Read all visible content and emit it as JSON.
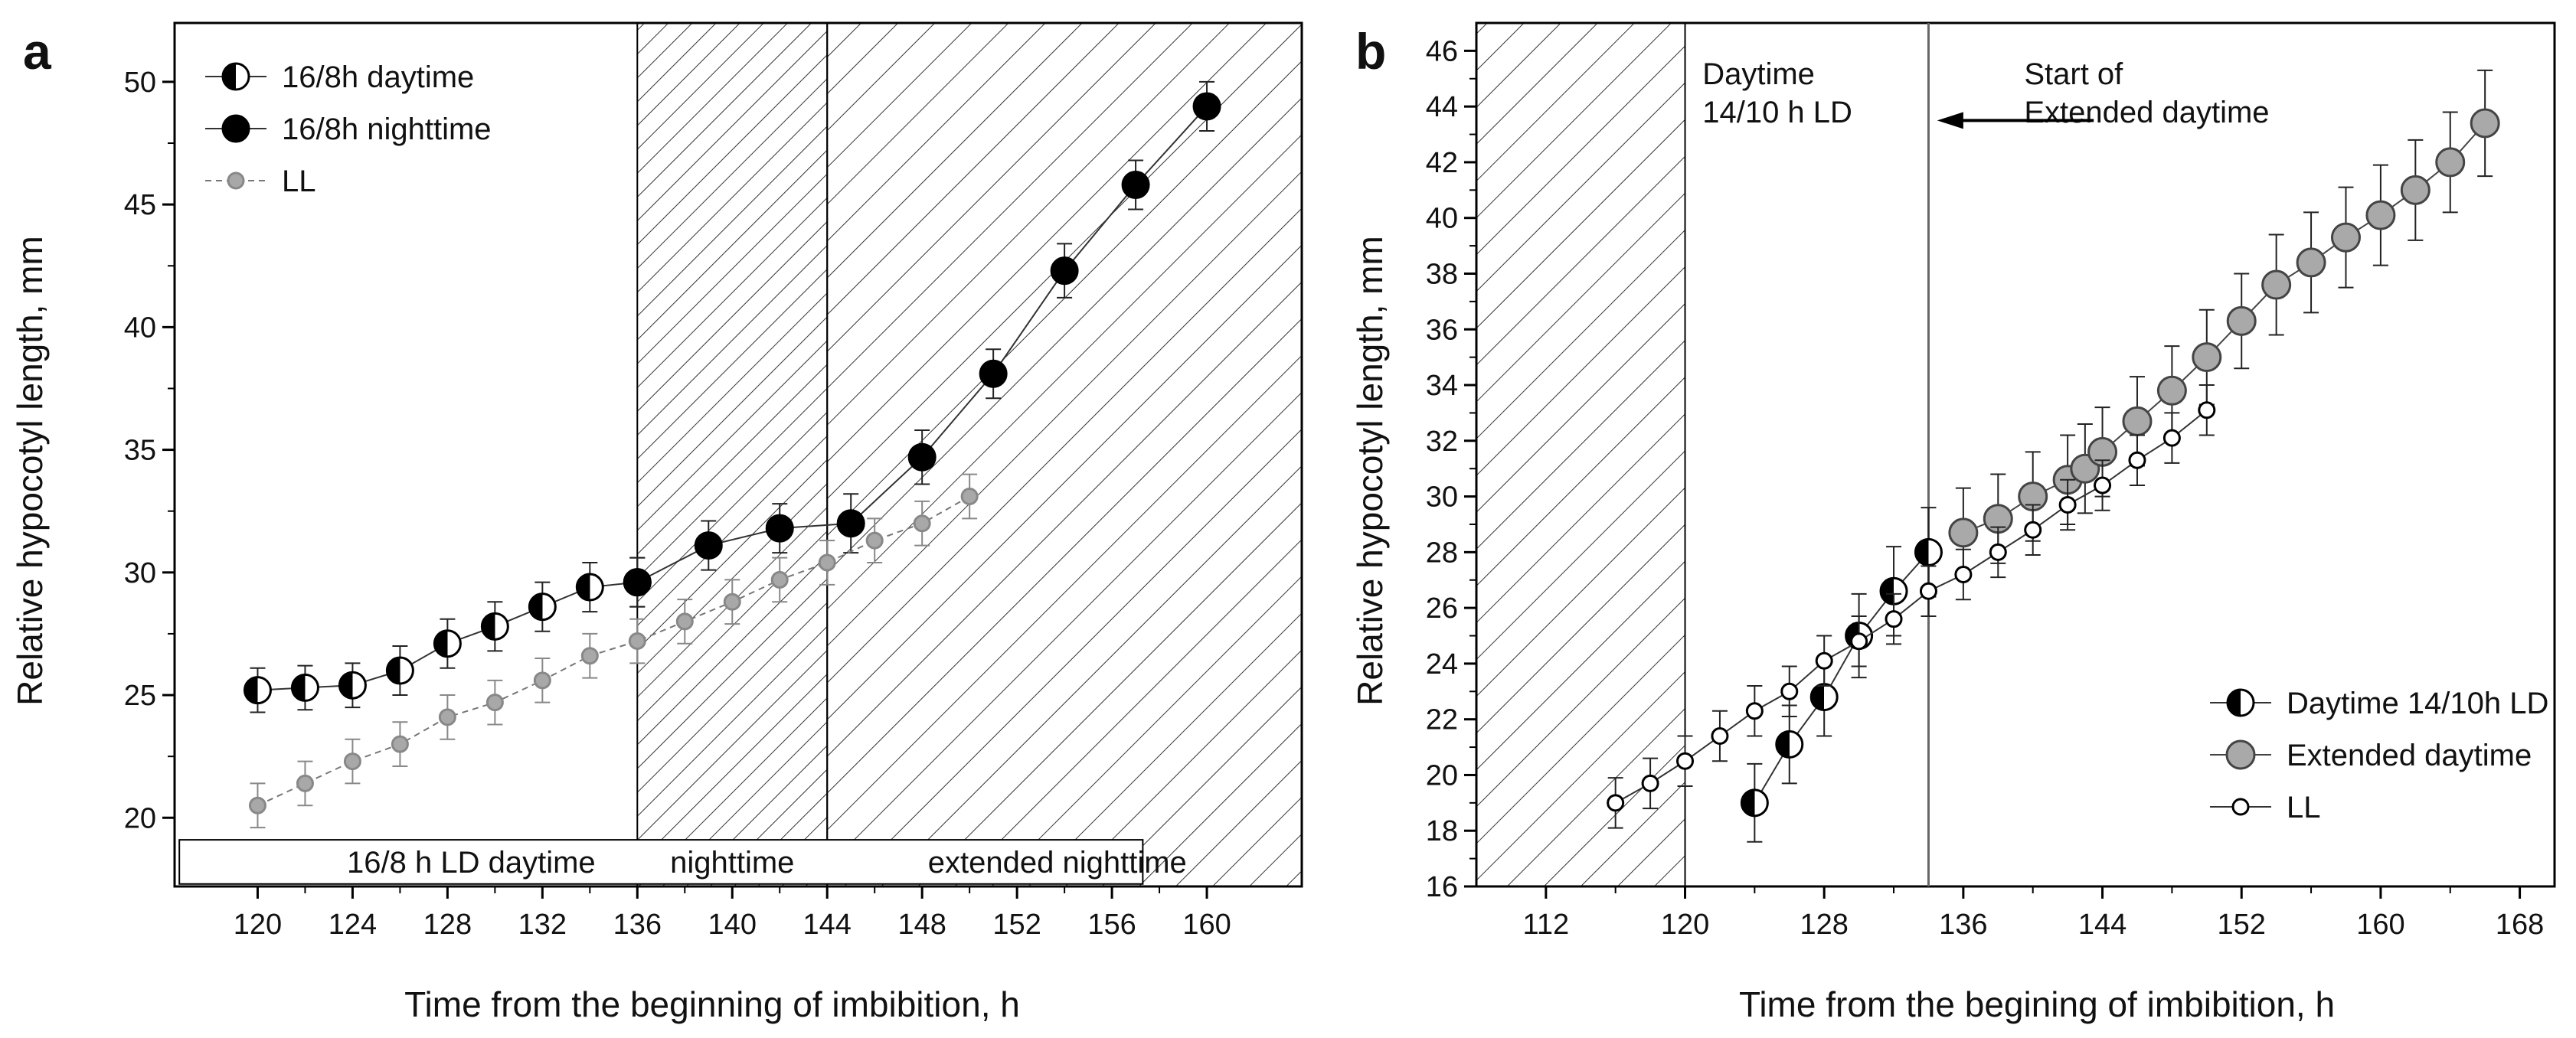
{
  "chart_data": [
    {
      "type": "scatter",
      "panel_label": "a",
      "xlabel": "Time from the beginning of imbibition, h",
      "ylabel": "Relative hypocotyl length, mm",
      "xlim": [
        116.5,
        164
      ],
      "ylim": [
        17.2,
        52.4
      ],
      "xticks": [
        120,
        124,
        128,
        132,
        136,
        140,
        144,
        148,
        152,
        156,
        160
      ],
      "yticks": [
        20,
        25,
        30,
        35,
        40,
        45,
        50
      ],
      "shaded_regions": [
        {
          "from": 136,
          "to": 144,
          "hatch": "fine"
        },
        {
          "from": 144,
          "to": 164,
          "hatch": "wide"
        }
      ],
      "annotation_box": {
        "labels": [
          {
            "text": "16/8 h LD daytime",
            "x": 129
          },
          {
            "text": "nighttime",
            "x": 140
          },
          {
            "text": "extended nighttime",
            "x": 153.7
          }
        ]
      },
      "legend": {
        "position": "top-left",
        "entries": [
          "16/8h daytime",
          "16/8h nighttime",
          "LL"
        ]
      },
      "series": [
        {
          "name": "16/8h daytime",
          "marker": "half-filled",
          "x": [
            120,
            122,
            124,
            126,
            128,
            130,
            132,
            134,
            136
          ],
          "y": [
            25.2,
            25.3,
            25.4,
            26.0,
            27.1,
            27.8,
            28.6,
            29.4,
            29.6
          ],
          "err": [
            0.9,
            0.9,
            0.9,
            1.0,
            1.0,
            1.0,
            1.0,
            1.0,
            1.0
          ]
        },
        {
          "name": "16/8h nighttime",
          "marker": "filled-black",
          "x": [
            136,
            139,
            142,
            145,
            148,
            151,
            154,
            157,
            160
          ],
          "y": [
            29.6,
            31.1,
            31.8,
            32.0,
            34.7,
            38.1,
            42.3,
            45.8,
            49.0
          ],
          "err": [
            1.0,
            1.0,
            1.0,
            1.2,
            1.1,
            1.0,
            1.1,
            1.0,
            1.0
          ]
        },
        {
          "name": "LL",
          "marker": "small-gray",
          "x": [
            120,
            122,
            124,
            126,
            128,
            130,
            132,
            134,
            136,
            138,
            140,
            142,
            144,
            146,
            148,
            150
          ],
          "y": [
            20.5,
            21.4,
            22.3,
            23.0,
            24.1,
            24.7,
            25.6,
            26.6,
            27.2,
            28.0,
            28.8,
            29.7,
            30.4,
            31.3,
            32.0,
            33.1
          ],
          "err": [
            0.9,
            0.9,
            0.9,
            0.9,
            0.9,
            0.9,
            0.9,
            0.9,
            0.9,
            0.9,
            0.9,
            0.9,
            0.9,
            0.9,
            0.9,
            0.9
          ]
        }
      ]
    },
    {
      "type": "scatter",
      "panel_label": "b",
      "xlabel": "Time from the begining of imbibition, h",
      "ylabel": "Relative hypocotyl length, mm",
      "xlim": [
        108,
        170
      ],
      "ylim": [
        16,
        47
      ],
      "xticks": [
        112,
        120,
        128,
        136,
        144,
        152,
        160,
        168
      ],
      "yticks": [
        16,
        18,
        20,
        22,
        24,
        26,
        28,
        30,
        32,
        34,
        36,
        38,
        40,
        42,
        44,
        46
      ],
      "shaded_regions": [
        {
          "from": 108,
          "to": 120,
          "hatch": "wide"
        }
      ],
      "vertical_line_x": 134,
      "annotations": [
        {
          "lines": [
            "Daytime",
            "14/10 h LD"
          ],
          "x": 121,
          "y": 44.8
        },
        {
          "lines": [
            "Start of",
            "Extended daytime"
          ],
          "x": 139.5,
          "y": 44.8
        }
      ],
      "legend": {
        "position": "bottom-right",
        "entries": [
          "Daytime 14/10h LD",
          "Extended daytime",
          "LL"
        ]
      },
      "series": [
        {
          "name": "Daytime 14/10h LD",
          "marker": "half-filled",
          "x": [
            124,
            126,
            128,
            130,
            132,
            134
          ],
          "y": [
            19.0,
            21.1,
            22.8,
            25.0,
            26.6,
            28.0
          ],
          "err": [
            1.4,
            1.4,
            1.4,
            1.5,
            1.6,
            1.6
          ]
        },
        {
          "name": "Extended daytime",
          "marker": "filled-gray",
          "x": [
            136,
            138,
            140,
            142,
            143,
            144,
            146,
            148,
            150,
            152,
            154,
            156,
            158,
            160,
            162,
            164,
            166
          ],
          "y": [
            28.7,
            29.2,
            30.0,
            30.6,
            31.0,
            31.6,
            32.7,
            33.8,
            35.0,
            36.3,
            37.6,
            38.4,
            39.3,
            40.1,
            41.0,
            42.0,
            43.4
          ],
          "err": [
            1.6,
            1.6,
            1.6,
            1.6,
            1.6,
            1.6,
            1.6,
            1.6,
            1.7,
            1.7,
            1.8,
            1.8,
            1.8,
            1.8,
            1.8,
            1.8,
            1.9
          ]
        },
        {
          "name": "LL",
          "marker": "open",
          "x": [
            116,
            118,
            120,
            122,
            124,
            126,
            128,
            130,
            132,
            134,
            136,
            138,
            140,
            142,
            144,
            146,
            148,
            150
          ],
          "y": [
            19.0,
            19.7,
            20.5,
            21.4,
            22.3,
            23.0,
            24.1,
            24.8,
            25.6,
            26.6,
            27.2,
            28.0,
            28.8,
            29.7,
            30.4,
            31.3,
            32.1,
            33.1
          ],
          "err": [
            0.9,
            0.9,
            0.9,
            0.9,
            0.9,
            0.9,
            0.9,
            0.9,
            0.9,
            0.9,
            0.9,
            0.9,
            0.9,
            0.9,
            0.9,
            0.9,
            0.9,
            0.9
          ]
        }
      ]
    }
  ]
}
